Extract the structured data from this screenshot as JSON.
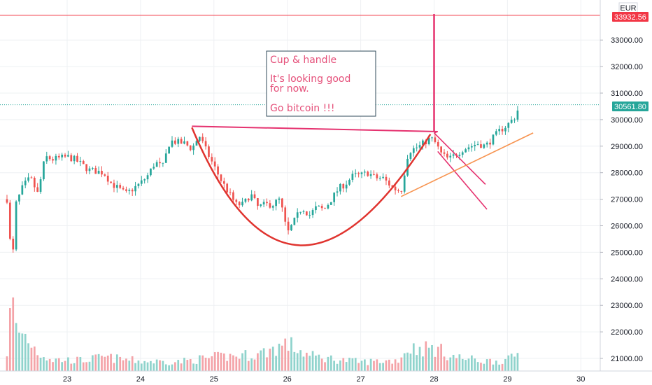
{
  "currency": "EUR",
  "annotation": {
    "lines": [
      "Cup & handle",
      "",
      "It's looking good",
      "for now.",
      "",
      "Go bitcoin !!!"
    ],
    "color": "#e5507a",
    "border": "#2f4858"
  },
  "price_tags": {
    "resistance": "33932.56",
    "last": "30561.80"
  },
  "colors": {
    "up": "#26a69a",
    "down": "#ef5350",
    "vol_up": "#8fd3cc",
    "vol_down": "#f4a3a8",
    "resistance": "#f23645",
    "last_line": "#26a69a",
    "cup": "#e0342f",
    "pattern": "#e5326f",
    "trend": "#f7934f",
    "grid": "#eef0f3"
  },
  "chart_data": {
    "type": "candlestick",
    "title": "",
    "xlabel": "",
    "ylabel": "",
    "x_ticks": [
      "23",
      "24",
      "25",
      "26",
      "27",
      "28",
      "29",
      "30"
    ],
    "y_ticks": [
      21000,
      22000,
      23000,
      24000,
      25000,
      26000,
      27000,
      28000,
      29000,
      30000,
      31000,
      32000,
      33000
    ],
    "y_tick_labels": [
      "21000.00",
      "22000.00",
      "23000.00",
      "24000.00",
      "25000.00",
      "26000.00",
      "27000.00",
      "28000.00",
      "29000.00",
      "30000.00",
      "31000.00",
      "32000.00",
      "33000.00"
    ],
    "ylim": [
      20600,
      34400
    ],
    "xlim": [
      22.15,
      30.5
    ],
    "resistance_level": 33932.56,
    "last_price": 30561.8,
    "start_day": 22.18,
    "step_day": 0.0416667,
    "close_points": [
      [
        22.18,
        27000
      ],
      [
        22.25,
        24400
      ],
      [
        22.3,
        26800
      ],
      [
        22.4,
        27500
      ],
      [
        22.5,
        27800
      ],
      [
        22.6,
        27200
      ],
      [
        22.7,
        28600
      ],
      [
        22.8,
        28500
      ],
      [
        23.0,
        28600
      ],
      [
        23.1,
        28500
      ],
      [
        23.3,
        28100
      ],
      [
        23.5,
        28000
      ],
      [
        23.6,
        27600
      ],
      [
        23.7,
        27400
      ],
      [
        23.8,
        27200
      ],
      [
        24.0,
        27600
      ],
      [
        24.1,
        27900
      ],
      [
        24.2,
        28400
      ],
      [
        24.3,
        28200
      ],
      [
        24.4,
        29200
      ],
      [
        24.6,
        29100
      ],
      [
        24.7,
        28900
      ],
      [
        24.8,
        29400
      ],
      [
        24.9,
        28800
      ],
      [
        25.1,
        27700
      ],
      [
        25.3,
        26800
      ],
      [
        25.4,
        26800
      ],
      [
        25.5,
        27200
      ],
      [
        25.6,
        26700
      ],
      [
        25.7,
        26800
      ],
      [
        25.8,
        26800
      ],
      [
        25.9,
        27000
      ],
      [
        26.0,
        25700
      ],
      [
        26.1,
        26200
      ],
      [
        26.2,
        26700
      ],
      [
        26.3,
        26400
      ],
      [
        26.4,
        26700
      ],
      [
        26.5,
        26600
      ],
      [
        26.7,
        27400
      ],
      [
        26.8,
        27600
      ],
      [
        26.9,
        27900
      ],
      [
        27.0,
        27900
      ],
      [
        27.1,
        28000
      ],
      [
        27.2,
        27800
      ],
      [
        27.3,
        27800
      ],
      [
        27.45,
        27400
      ],
      [
        27.55,
        27300
      ],
      [
        27.65,
        28800
      ],
      [
        27.8,
        29000
      ],
      [
        27.95,
        29300
      ],
      [
        28.0,
        29200
      ],
      [
        28.1,
        28700
      ],
      [
        28.2,
        28500
      ],
      [
        28.3,
        28700
      ],
      [
        28.4,
        28900
      ],
      [
        28.5,
        29000
      ],
      [
        28.6,
        29100
      ],
      [
        28.7,
        29000
      ],
      [
        28.8,
        29300
      ],
      [
        28.9,
        29600
      ],
      [
        29.0,
        29800
      ],
      [
        29.1,
        30100
      ],
      [
        29.17,
        30560
      ]
    ],
    "volume_profile": [
      [
        22.18,
        0.25
      ],
      [
        22.25,
        1.0
      ],
      [
        22.3,
        0.55
      ],
      [
        22.45,
        0.45
      ],
      [
        22.6,
        0.25
      ],
      [
        22.8,
        0.15
      ],
      [
        23.2,
        0.14
      ],
      [
        23.5,
        0.18
      ],
      [
        24.0,
        0.13
      ],
      [
        24.5,
        0.12
      ],
      [
        25.0,
        0.18
      ],
      [
        25.3,
        0.2
      ],
      [
        25.6,
        0.22
      ],
      [
        26.0,
        0.36
      ],
      [
        26.3,
        0.2
      ],
      [
        26.7,
        0.15
      ],
      [
        27.0,
        0.12
      ],
      [
        27.5,
        0.14
      ],
      [
        27.65,
        0.3
      ],
      [
        28.0,
        0.3
      ],
      [
        28.3,
        0.18
      ],
      [
        28.7,
        0.13
      ],
      [
        29.0,
        0.14
      ],
      [
        29.17,
        0.25
      ]
    ],
    "lines": [
      {
        "name": "cup",
        "type": "quadratic",
        "x1": 24.7,
        "y1": 29700,
        "cx": 26.03,
        "cy": 20950,
        "x2": 27.95,
        "y2": 29450
      },
      {
        "name": "cup_rim",
        "x1": 24.7,
        "y1": 29750,
        "x2": 28.05,
        "y2": 29550
      },
      {
        "name": "rim_end_tick",
        "x1": 28.0,
        "y1": 29500,
        "x2": 28.05,
        "y2": 29550
      },
      {
        "name": "breakout_vertical",
        "x1": 28.0,
        "y1": 29550,
        "x2": 28.0,
        "y2": 33980
      },
      {
        "name": "handle_upper",
        "x1": 28.0,
        "y1": 29500,
        "x2": 28.7,
        "y2": 27560
      },
      {
        "name": "handle_lower",
        "x1": 28.05,
        "y1": 28800,
        "x2": 28.72,
        "y2": 26620
      },
      {
        "name": "trend_support",
        "x1": 27.55,
        "y1": 27100,
        "x2": 29.35,
        "y2": 29500
      }
    ]
  }
}
